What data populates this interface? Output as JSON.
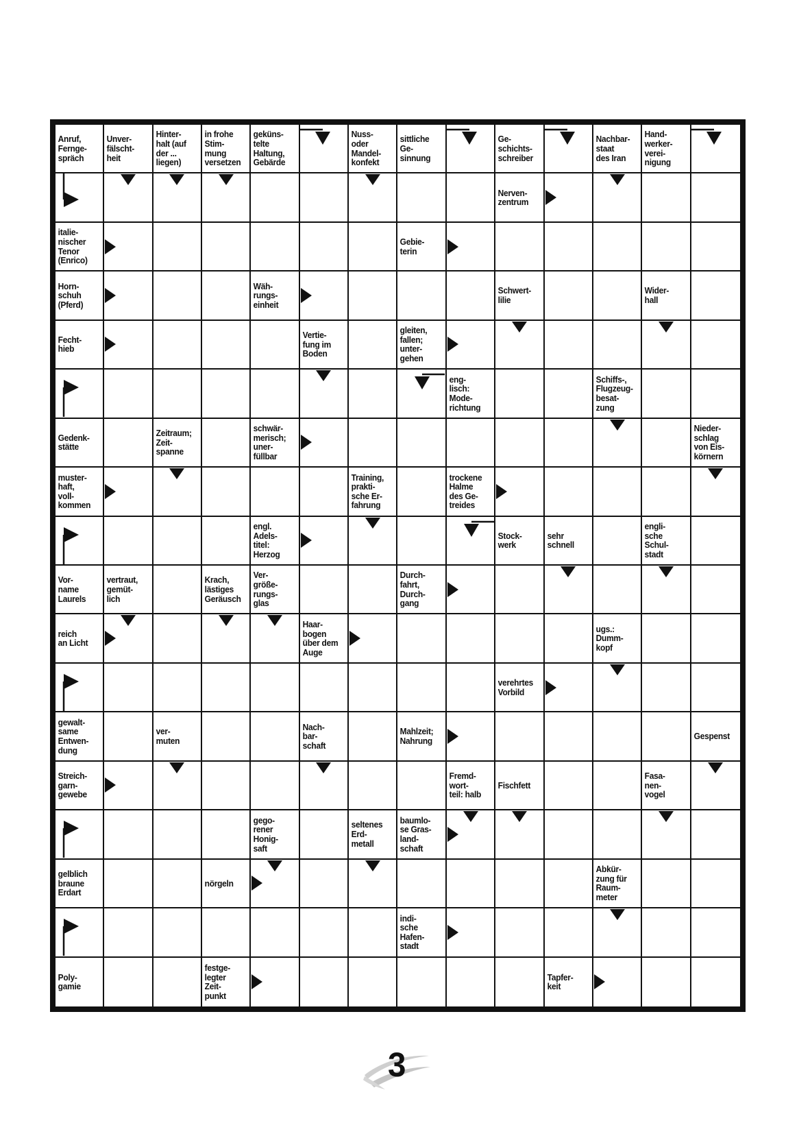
{
  "page": {
    "number": "3"
  },
  "colors": {
    "ink": "#111111",
    "swoosh": "#c9c9c9"
  },
  "grid": {
    "cols": 14,
    "rows": 18,
    "clues": [
      {
        "r": 1,
        "c": 1,
        "text": "Anruf,\nFernge-\nspräch"
      },
      {
        "r": 1,
        "c": 2,
        "text": "Unver-\nfälscht-\nheit"
      },
      {
        "r": 1,
        "c": 3,
        "text": "Hinter-\nhalt (auf\nder ...\nliegen)"
      },
      {
        "r": 1,
        "c": 4,
        "text": "in frohe\nStim-\nmung\nversetzen"
      },
      {
        "r": 1,
        "c": 5,
        "text": "geküns-\ntelte\nHaltung,\nGebärde"
      },
      {
        "r": 1,
        "c": 7,
        "text": "Nuss-\noder\nMandel-\nkonfekt"
      },
      {
        "r": 1,
        "c": 8,
        "text": "sittliche\nGe-\nsinnung"
      },
      {
        "r": 1,
        "c": 10,
        "text": "Ge-\nschichts-\nschreiber"
      },
      {
        "r": 1,
        "c": 12,
        "text": "Nachbar-\nstaat\ndes Iran"
      },
      {
        "r": 1,
        "c": 13,
        "text": "Hand-\nwerker-\nverei-\nnigung"
      },
      {
        "r": 2,
        "c": 10,
        "text": "Nerven-\nzentrum"
      },
      {
        "r": 3,
        "c": 1,
        "text": "italie-\nnischer\nTenor\n(Enrico)"
      },
      {
        "r": 3,
        "c": 8,
        "text": "Gebie-\nterin"
      },
      {
        "r": 4,
        "c": 1,
        "text": "Horn-\nschuh\n(Pferd)"
      },
      {
        "r": 4,
        "c": 5,
        "text": "Wäh-\nrungs-\neinheit"
      },
      {
        "r": 4,
        "c": 10,
        "text": "Schwert-\nlilie"
      },
      {
        "r": 4,
        "c": 13,
        "text": "Wider-\nhall"
      },
      {
        "r": 5,
        "c": 1,
        "text": "Fecht-\nhieb"
      },
      {
        "r": 5,
        "c": 6,
        "text": "Vertie-\nfung im\nBoden"
      },
      {
        "r": 5,
        "c": 8,
        "text": "gleiten,\nfallen;\nunter-\ngehen"
      },
      {
        "r": 6,
        "c": 9,
        "text": "eng-\nlisch:\nMode-\nrichtung"
      },
      {
        "r": 6,
        "c": 12,
        "text": "Schiffs-,\nFlugzeug-\nbesat-\nzung"
      },
      {
        "r": 7,
        "c": 1,
        "text": "Gedenk-\nstätte"
      },
      {
        "r": 7,
        "c": 3,
        "text": "Zeitraum;\nZeit-\nspanne"
      },
      {
        "r": 7,
        "c": 5,
        "text": "schwär-\nmerisch;\nuner-\nfüllbar"
      },
      {
        "r": 7,
        "c": 14,
        "text": "Nieder-\nschlag\nvon Eis-\nkörnern"
      },
      {
        "r": 8,
        "c": 1,
        "text": "muster-\nhaft,\nvoll-\nkommen"
      },
      {
        "r": 8,
        "c": 7,
        "text": "Training,\nprakti-\nsche Er-\nfahrung"
      },
      {
        "r": 8,
        "c": 9,
        "text": "trockene\nHalme\ndes Ge-\ntreides"
      },
      {
        "r": 9,
        "c": 5,
        "text": "engl.\nAdels-\ntitel:\nHerzog"
      },
      {
        "r": 9,
        "c": 10,
        "text": "Stock-\nwerk"
      },
      {
        "r": 9,
        "c": 11,
        "text": "sehr\nschnell"
      },
      {
        "r": 9,
        "c": 13,
        "text": "engli-\nsche\nSchul-\nstadt"
      },
      {
        "r": 10,
        "c": 1,
        "text": "Vor-\nname\nLaurels"
      },
      {
        "r": 10,
        "c": 2,
        "text": "vertraut,\ngemüt-\nlich"
      },
      {
        "r": 10,
        "c": 4,
        "text": "Krach,\nlästiges\nGeräusch"
      },
      {
        "r": 10,
        "c": 5,
        "text": "Ver-\ngröße-\nrungs-\nglas"
      },
      {
        "r": 10,
        "c": 8,
        "text": "Durch-\nfahrt,\nDurch-\ngang"
      },
      {
        "r": 11,
        "c": 1,
        "text": "reich\nan Licht"
      },
      {
        "r": 11,
        "c": 6,
        "text": "Haar-\nbogen\nüber dem\nAuge"
      },
      {
        "r": 11,
        "c": 12,
        "text": "ugs.:\nDumm-\nkopf"
      },
      {
        "r": 12,
        "c": 10,
        "text": "verehrtes\nVorbild"
      },
      {
        "r": 13,
        "c": 1,
        "text": "gewalt-\nsame\nEntwen-\ndung"
      },
      {
        "r": 13,
        "c": 3,
        "text": "ver-\nmuten"
      },
      {
        "r": 13,
        "c": 6,
        "text": "Nach-\nbar-\nschaft"
      },
      {
        "r": 13,
        "c": 8,
        "text": "Mahlzeit;\nNahrung"
      },
      {
        "r": 13,
        "c": 14,
        "text": "Gespenst"
      },
      {
        "r": 14,
        "c": 1,
        "text": "Streich-\ngarn-\ngewebe"
      },
      {
        "r": 14,
        "c": 9,
        "text": "Fremd-\nwort-\nteil: halb"
      },
      {
        "r": 14,
        "c": 10,
        "text": "Fischfett"
      },
      {
        "r": 14,
        "c": 13,
        "text": "Fasa-\nnen-\nvogel"
      },
      {
        "r": 15,
        "c": 5,
        "text": "gego-\nrener\nHonig-\nsaft"
      },
      {
        "r": 15,
        "c": 7,
        "text": "seltenes\nErd-\nmetall"
      },
      {
        "r": 15,
        "c": 8,
        "text": "baumlo-\nse Gras-\nland-\nschaft"
      },
      {
        "r": 16,
        "c": 1,
        "text": "gelblich\nbraune\nErdart"
      },
      {
        "r": 16,
        "c": 4,
        "text": "nörgeln"
      },
      {
        "r": 16,
        "c": 12,
        "text": "Abkür-\nzung für\nRaum-\nmeter"
      },
      {
        "r": 17,
        "c": 8,
        "text": "indi-\nsche\nHafen-\nstadt"
      },
      {
        "r": 18,
        "c": 1,
        "text": "Poly-\ngamie"
      },
      {
        "r": 18,
        "c": 4,
        "text": "festge-\nlegter\nZeit-\npunkt"
      },
      {
        "r": 18,
        "c": 11,
        "text": "Tapfer-\nkeit"
      }
    ],
    "arrows": [
      {
        "r": 2,
        "c": 1,
        "kind": "bend-top-right"
      },
      {
        "r": 1,
        "c": 6,
        "kind": "bend-left-down"
      },
      {
        "r": 1,
        "c": 9,
        "kind": "bend-left-down"
      },
      {
        "r": 1,
        "c": 11,
        "kind": "bend-left-down"
      },
      {
        "r": 1,
        "c": 14,
        "kind": "bend-left-down"
      },
      {
        "r": 6,
        "c": 1,
        "kind": "bend-bottom-right"
      },
      {
        "r": 9,
        "c": 1,
        "kind": "bend-bottom-right"
      },
      {
        "r": 12,
        "c": 1,
        "kind": "bend-bottom-right"
      },
      {
        "r": 15,
        "c": 1,
        "kind": "bend-bottom-right"
      },
      {
        "r": 17,
        "c": 1,
        "kind": "bend-bottom-right"
      },
      {
        "r": 6,
        "c": 8,
        "kind": "bend-right-down"
      },
      {
        "r": 9,
        "c": 9,
        "kind": "bend-right-down"
      },
      {
        "r": 2,
        "c": 2,
        "kind": "down"
      },
      {
        "r": 2,
        "c": 3,
        "kind": "down"
      },
      {
        "r": 2,
        "c": 4,
        "kind": "down"
      },
      {
        "r": 2,
        "c": 7,
        "kind": "down"
      },
      {
        "r": 2,
        "c": 12,
        "kind": "down"
      },
      {
        "r": 5,
        "c": 10,
        "kind": "down"
      },
      {
        "r": 5,
        "c": 13,
        "kind": "down"
      },
      {
        "r": 6,
        "c": 6,
        "kind": "down"
      },
      {
        "r": 7,
        "c": 12,
        "kind": "down"
      },
      {
        "r": 8,
        "c": 3,
        "kind": "down"
      },
      {
        "r": 8,
        "c": 14,
        "kind": "down"
      },
      {
        "r": 9,
        "c": 7,
        "kind": "down"
      },
      {
        "r": 10,
        "c": 11,
        "kind": "down"
      },
      {
        "r": 10,
        "c": 13,
        "kind": "down"
      },
      {
        "r": 11,
        "c": 2,
        "kind": "down"
      },
      {
        "r": 11,
        "c": 4,
        "kind": "down"
      },
      {
        "r": 11,
        "c": 5,
        "kind": "down"
      },
      {
        "r": 12,
        "c": 12,
        "kind": "down"
      },
      {
        "r": 14,
        "c": 3,
        "kind": "down"
      },
      {
        "r": 14,
        "c": 6,
        "kind": "down"
      },
      {
        "r": 14,
        "c": 14,
        "kind": "down"
      },
      {
        "r": 15,
        "c": 9,
        "kind": "down"
      },
      {
        "r": 15,
        "c": 10,
        "kind": "down"
      },
      {
        "r": 15,
        "c": 13,
        "kind": "down"
      },
      {
        "r": 16,
        "c": 5,
        "kind": "down"
      },
      {
        "r": 16,
        "c": 7,
        "kind": "down"
      },
      {
        "r": 17,
        "c": 12,
        "kind": "down"
      },
      {
        "r": 2,
        "c": 11,
        "kind": "right"
      },
      {
        "r": 3,
        "c": 2,
        "kind": "right"
      },
      {
        "r": 3,
        "c": 9,
        "kind": "right"
      },
      {
        "r": 4,
        "c": 2,
        "kind": "right"
      },
      {
        "r": 4,
        "c": 6,
        "kind": "right"
      },
      {
        "r": 5,
        "c": 2,
        "kind": "right"
      },
      {
        "r": 5,
        "c": 9,
        "kind": "right"
      },
      {
        "r": 7,
        "c": 6,
        "kind": "right"
      },
      {
        "r": 8,
        "c": 2,
        "kind": "right"
      },
      {
        "r": 8,
        "c": 10,
        "kind": "right"
      },
      {
        "r": 9,
        "c": 6,
        "kind": "right"
      },
      {
        "r": 10,
        "c": 9,
        "kind": "right"
      },
      {
        "r": 11,
        "c": 2,
        "kind": "right"
      },
      {
        "r": 11,
        "c": 7,
        "kind": "right"
      },
      {
        "r": 12,
        "c": 11,
        "kind": "right"
      },
      {
        "r": 13,
        "c": 9,
        "kind": "right"
      },
      {
        "r": 14,
        "c": 2,
        "kind": "right"
      },
      {
        "r": 15,
        "c": 9,
        "kind": "right"
      },
      {
        "r": 16,
        "c": 5,
        "kind": "right"
      },
      {
        "r": 17,
        "c": 9,
        "kind": "right"
      },
      {
        "r": 18,
        "c": 5,
        "kind": "right"
      },
      {
        "r": 18,
        "c": 12,
        "kind": "right"
      }
    ]
  }
}
